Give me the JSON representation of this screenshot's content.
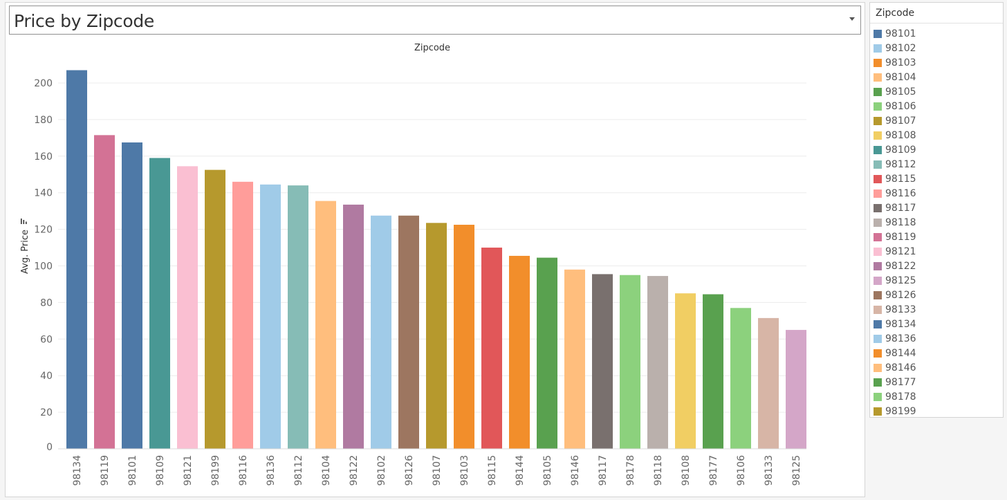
{
  "chart_title": "Price by Zipcode",
  "chart_data": {
    "type": "bar",
    "title": "Price by Zipcode",
    "header_label": "Zipcode",
    "ylabel": "Avg. Price",
    "xlabel": "",
    "ylim": [
      0,
      210
    ],
    "yticks": [
      0,
      20,
      40,
      60,
      80,
      100,
      120,
      140,
      160,
      180,
      200
    ],
    "grid": true,
    "categories": [
      "98134",
      "98119",
      "98101",
      "98109",
      "98121",
      "98199",
      "98116",
      "98136",
      "98112",
      "98104",
      "98122",
      "98102",
      "98126",
      "98107",
      "98103",
      "98115",
      "98144",
      "98105",
      "98146",
      "98117",
      "98178",
      "98118",
      "98108",
      "98177",
      "98106",
      "98133",
      "98125"
    ],
    "values": [
      207,
      171.5,
      167.5,
      159,
      154.5,
      152.5,
      146,
      144.5,
      144,
      135.5,
      133.5,
      127.5,
      127.5,
      123.5,
      122.5,
      110,
      105.5,
      104.5,
      98,
      95.5,
      95,
      94.5,
      85,
      84.5,
      77,
      71.5,
      65
    ]
  },
  "legend": {
    "title": "Zipcode",
    "items": [
      {
        "label": "98101",
        "color": "#4e79a7"
      },
      {
        "label": "98102",
        "color": "#a0cbe8"
      },
      {
        "label": "98103",
        "color": "#f28e2b"
      },
      {
        "label": "98104",
        "color": "#ffbe7d"
      },
      {
        "label": "98105",
        "color": "#59a14f"
      },
      {
        "label": "98106",
        "color": "#8cd17d"
      },
      {
        "label": "98107",
        "color": "#b6992d"
      },
      {
        "label": "98108",
        "color": "#f1ce63"
      },
      {
        "label": "98109",
        "color": "#499894"
      },
      {
        "label": "98112",
        "color": "#86bcb6"
      },
      {
        "label": "98115",
        "color": "#e15759"
      },
      {
        "label": "98116",
        "color": "#ff9d9a"
      },
      {
        "label": "98117",
        "color": "#79706e"
      },
      {
        "label": "98118",
        "color": "#bab0ac"
      },
      {
        "label": "98119",
        "color": "#d37295"
      },
      {
        "label": "98121",
        "color": "#fabfd2"
      },
      {
        "label": "98122",
        "color": "#b07aa1"
      },
      {
        "label": "98125",
        "color": "#d4a6c8"
      },
      {
        "label": "98126",
        "color": "#9d7660"
      },
      {
        "label": "98133",
        "color": "#d7b5a6"
      },
      {
        "label": "98134",
        "color": "#4e79a7"
      },
      {
        "label": "98136",
        "color": "#a0cbe8"
      },
      {
        "label": "98144",
        "color": "#f28e2b"
      },
      {
        "label": "98146",
        "color": "#ffbe7d"
      },
      {
        "label": "98177",
        "color": "#59a14f"
      },
      {
        "label": "98178",
        "color": "#8cd17d"
      },
      {
        "label": "98199",
        "color": "#b6992d"
      }
    ]
  }
}
